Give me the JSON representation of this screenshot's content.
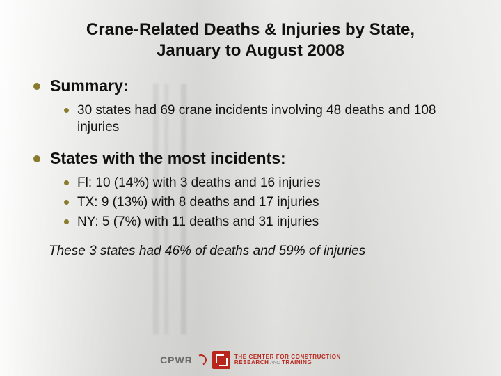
{
  "colors": {
    "background": "#e8e8e6",
    "text": "#111111",
    "bullet": "#8a7a2e",
    "logo_red": "#b9261c",
    "logo_gray": "#6a6a68"
  },
  "typography": {
    "family": "Arial",
    "title_size_pt": 24,
    "heading_size_pt": 23,
    "body_size_pt": 19,
    "note_size_pt": 19,
    "note_italic": true
  },
  "title": {
    "line1": "Crane-Related Deaths & Injuries by State,",
    "line2": "January to August 2008"
  },
  "sections": [
    {
      "heading": "Summary:",
      "items": [
        "30 states had 69 crane incidents involving 48 deaths and 108 injuries"
      ]
    },
    {
      "heading": "States with the most incidents:",
      "items": [
        "Fl:  10 (14%) with 3 deaths and 16 injuries",
        "TX:  9  (13%) with 8 deaths and 17 injuries",
        "NY: 5  (7%) with 11 deaths and 31 injuries"
      ]
    }
  ],
  "note": "These 3 states had 46% of deaths and 59% of injuries",
  "footer": {
    "cpwr": "CPWR",
    "center_line1": "THE CENTER FOR CONSTRUCTION",
    "center_line2a": "RESEARCH",
    "center_line2_and": " AND ",
    "center_line2b": "TRAINING"
  }
}
